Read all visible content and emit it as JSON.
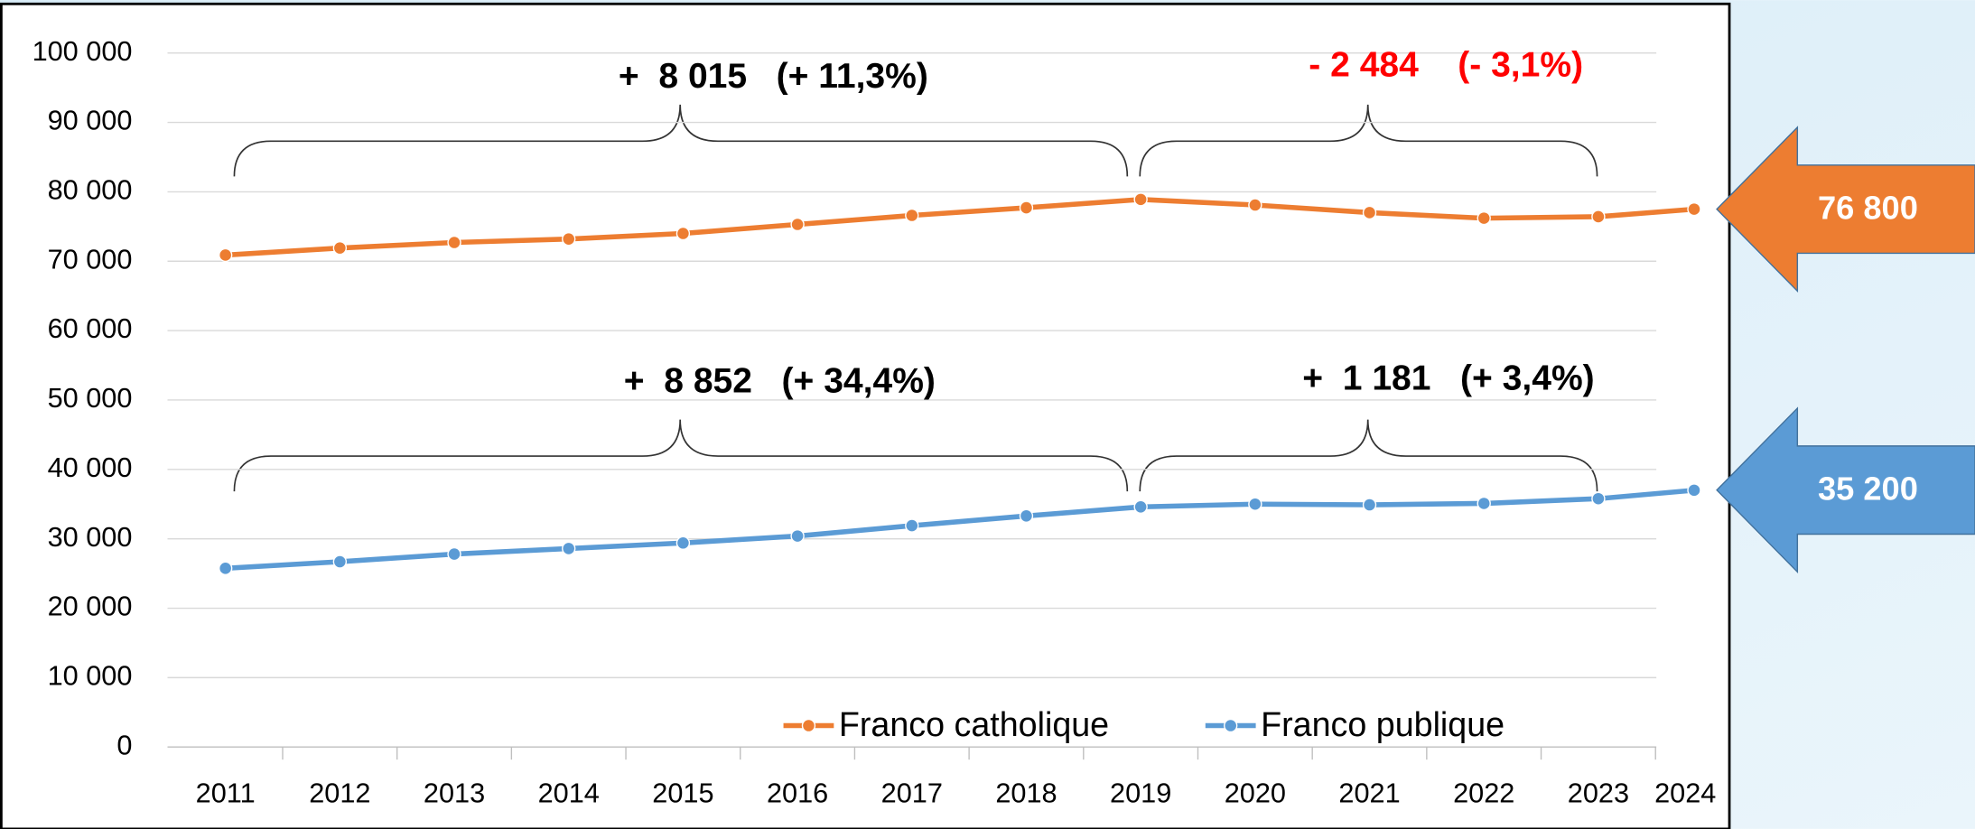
{
  "chart_data": {
    "type": "line",
    "categories": [
      "2011",
      "2012",
      "2013",
      "2014",
      "2015",
      "2016",
      "2017",
      "2018",
      "2019",
      "2020",
      "2021",
      "2022",
      "2023",
      "2024"
    ],
    "series": [
      {
        "name": "Franco catholique",
        "color": "#ed7d31",
        "values": [
          70885,
          71900,
          72700,
          73200,
          74000,
          75300,
          76600,
          77700,
          78900,
          78100,
          77000,
          76200,
          76416,
          77500
        ]
      },
      {
        "name": "Franco publique",
        "color": "#5b9bd5",
        "values": [
          25750,
          26700,
          27800,
          28600,
          29400,
          30400,
          31900,
          33300,
          34602,
          35000,
          34900,
          35100,
          35783,
          37000
        ]
      }
    ],
    "ylim": [
      0,
      100000
    ],
    "yticks": [
      0,
      {
        "value": 10000,
        "label": "10 000"
      },
      {
        "value": 20000,
        "label": "20 000"
      },
      {
        "value": 30000,
        "label": "30 000"
      },
      {
        "value": 40000,
        "label": "40 000"
      },
      {
        "value": 50000,
        "label": "50 000"
      },
      {
        "value": 60000,
        "label": "60 000"
      },
      {
        "value": 70000,
        "label": "70 000"
      },
      {
        "value": 80000,
        "label": "80 000"
      },
      {
        "value": 90000,
        "label": "90 000"
      },
      {
        "value": 100000,
        "label": "100 000"
      }
    ],
    "grid": true,
    "annotations": [
      {
        "text": "+  8 015   (+ 11,3%)",
        "color": "#000000"
      },
      {
        "text": "- 2 484    (- 3,1%)",
        "color": "#ff0000"
      },
      {
        "text": "+  8 852   (+ 34,4%)",
        "color": "#000000"
      },
      {
        "text": "+  1 181   (+ 3,4%)",
        "color": "#000000"
      }
    ],
    "callouts": [
      {
        "text": "76 800",
        "color": "#ed7d31"
      },
      {
        "text": "35 200",
        "color": "#5b9bd5"
      }
    ]
  }
}
